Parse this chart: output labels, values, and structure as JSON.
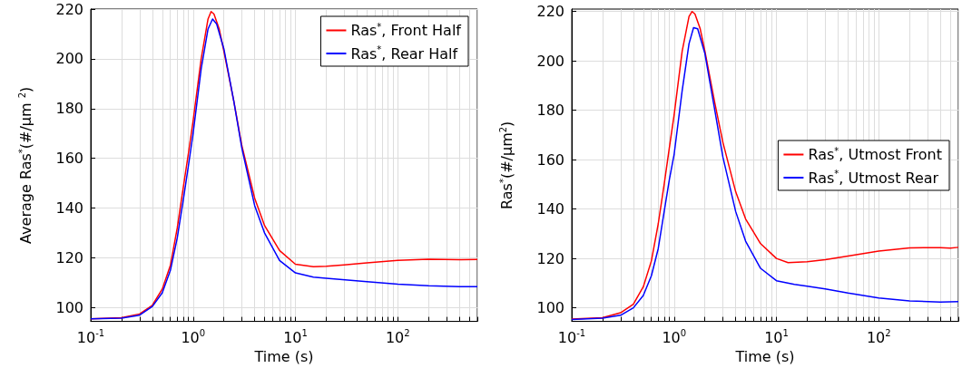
{
  "chart_data": [
    {
      "type": "line",
      "xlabel": "Time (s)",
      "ylabel": "Average Ras$^{*}$(#/µm $^{2}$)",
      "log": "x",
      "grid": true,
      "legend": "top right",
      "xlim": [
        0.1,
        600
      ],
      "ylim": [
        94.5,
        220
      ],
      "xticks": [
        {
          "value": 0.1,
          "label": "10$^{-1}$"
        },
        {
          "value": 0.2,
          "label": null
        },
        {
          "value": 0.3,
          "label": null
        },
        {
          "value": 0.4,
          "label": null
        },
        {
          "value": 0.5,
          "label": null
        },
        {
          "value": 0.6,
          "label": null
        },
        {
          "value": 0.7,
          "label": null
        },
        {
          "value": 0.8,
          "label": null
        },
        {
          "value": 0.9,
          "label": null
        },
        {
          "value": 1,
          "label": "10$^{0}$"
        },
        {
          "value": 2,
          "label": null
        },
        {
          "value": 3,
          "label": null
        },
        {
          "value": 4,
          "label": null
        },
        {
          "value": 5,
          "label": null
        },
        {
          "value": 6,
          "label": null
        },
        {
          "value": 7,
          "label": null
        },
        {
          "value": 8,
          "label": null
        },
        {
          "value": 9,
          "label": null
        },
        {
          "value": 10,
          "label": "10$^{1}$"
        },
        {
          "value": 20,
          "label": null
        },
        {
          "value": 30,
          "label": null
        },
        {
          "value": 40,
          "label": null
        },
        {
          "value": 50,
          "label": null
        },
        {
          "value": 60,
          "label": null
        },
        {
          "value": 70,
          "label": null
        },
        {
          "value": 80,
          "label": null
        },
        {
          "value": 90,
          "label": null
        },
        {
          "value": 100,
          "label": "10$^{2}$"
        },
        {
          "value": 200,
          "label": null
        },
        {
          "value": 300,
          "label": null
        },
        {
          "value": 400,
          "label": null
        },
        {
          "value": 500,
          "label": null
        },
        {
          "value": 600,
          "label": null
        }
      ],
      "yticks": [
        100,
        120,
        140,
        160,
        180,
        200,
        220
      ],
      "series": [
        {
          "name": "Ras$^{*}$, Front Half",
          "color": "#ff0000",
          "x": [
            0.1,
            0.2,
            0.3,
            0.4,
            0.5,
            0.6,
            0.7,
            0.8,
            0.9,
            1,
            1.2,
            1.4,
            1.5,
            1.6,
            1.8,
            2,
            2.5,
            3,
            4,
            5,
            7,
            10,
            15,
            20,
            30,
            50,
            100,
            200,
            400,
            600
          ],
          "values": [
            95.5,
            96,
            97.5,
            101,
            107.5,
            117,
            132,
            148,
            162,
            175,
            200,
            216,
            219,
            218,
            212,
            203,
            183,
            165,
            144,
            133,
            123,
            117.5,
            116.5,
            116.7,
            117.2,
            118,
            119,
            119.5,
            119.3,
            119.4
          ]
        },
        {
          "name": "Ras$^{*}$, Rear Half",
          "color": "#0000ff",
          "x": [
            0.1,
            0.2,
            0.3,
            0.4,
            0.5,
            0.6,
            0.7,
            0.8,
            0.9,
            1,
            1.2,
            1.4,
            1.55,
            1.7,
            2,
            2.5,
            3,
            4,
            5,
            7,
            10,
            15,
            20,
            50,
            100,
            200,
            400,
            600
          ],
          "values": [
            95.5,
            95.8,
            97,
            100.5,
            106,
            115,
            128,
            143,
            157,
            170,
            196,
            212,
            216,
            214,
            204,
            183,
            164,
            141,
            130,
            119,
            114,
            112.3,
            111.8,
            110.5,
            109.5,
            108.8,
            108.5,
            108.5
          ]
        }
      ]
    },
    {
      "type": "line",
      "xlabel": "Time (s)",
      "ylabel": "Ras$^{*}$(#/µm$^{2}$)",
      "log": "x",
      "grid": true,
      "legend": "right",
      "xlim": [
        0.1,
        600
      ],
      "ylim": [
        94.5,
        221
      ],
      "xticks": [
        {
          "value": 0.1,
          "label": "10$^{-1}$"
        },
        {
          "value": 0.2,
          "label": null
        },
        {
          "value": 0.3,
          "label": null
        },
        {
          "value": 0.4,
          "label": null
        },
        {
          "value": 0.5,
          "label": null
        },
        {
          "value": 0.6,
          "label": null
        },
        {
          "value": 0.7,
          "label": null
        },
        {
          "value": 0.8,
          "label": null
        },
        {
          "value": 0.9,
          "label": null
        },
        {
          "value": 1,
          "label": "10$^{0}$"
        },
        {
          "value": 2,
          "label": null
        },
        {
          "value": 3,
          "label": null
        },
        {
          "value": 4,
          "label": null
        },
        {
          "value": 5,
          "label": null
        },
        {
          "value": 6,
          "label": null
        },
        {
          "value": 7,
          "label": null
        },
        {
          "value": 8,
          "label": null
        },
        {
          "value": 9,
          "label": null
        },
        {
          "value": 10,
          "label": "10$^{1}$"
        },
        {
          "value": 20,
          "label": null
        },
        {
          "value": 30,
          "label": null
        },
        {
          "value": 40,
          "label": null
        },
        {
          "value": 50,
          "label": null
        },
        {
          "value": 60,
          "label": null
        },
        {
          "value": 70,
          "label": null
        },
        {
          "value": 80,
          "label": null
        },
        {
          "value": 90,
          "label": null
        },
        {
          "value": 100,
          "label": "10$^{2}$"
        },
        {
          "value": 200,
          "label": null
        },
        {
          "value": 300,
          "label": null
        },
        {
          "value": 400,
          "label": null
        },
        {
          "value": 500,
          "label": null
        },
        {
          "value": 600,
          "label": null
        }
      ],
      "yticks": [
        100,
        120,
        140,
        160,
        180,
        200,
        220
      ],
      "series": [
        {
          "name": "Ras$^{*}$, Utmost Front",
          "color": "#ff0000",
          "x": [
            0.1,
            0.2,
            0.3,
            0.4,
            0.5,
            0.6,
            0.7,
            0.8,
            0.9,
            1,
            1.2,
            1.4,
            1.5,
            1.6,
            1.8,
            2,
            2.5,
            3,
            4,
            5,
            7,
            10,
            13,
            20,
            30,
            50,
            100,
            200,
            400,
            500,
            600
          ],
          "values": [
            95.5,
            96,
            98,
            101.5,
            108.5,
            119,
            134,
            150,
            165,
            178,
            204,
            218,
            220,
            219,
            213,
            204,
            183,
            167,
            147,
            136,
            126,
            120,
            118.3,
            118.7,
            119.5,
            121,
            123,
            124.3,
            124.4,
            124.2,
            124.5
          ]
        },
        {
          "name": "Ras$^{*}$, Utmost Rear",
          "color": "#0000ff",
          "x": [
            0.1,
            0.2,
            0.3,
            0.4,
            0.5,
            0.6,
            0.7,
            0.8,
            0.9,
            1,
            1.2,
            1.4,
            1.55,
            1.7,
            2,
            2.5,
            3,
            4,
            5,
            7,
            10,
            15,
            20,
            30,
            50,
            100,
            200,
            400,
            600
          ],
          "values": [
            95.3,
            95.8,
            97,
            100,
            105,
            113,
            124,
            139,
            152,
            162,
            188,
            207,
            213.5,
            213,
            203,
            180,
            161,
            139,
            127,
            116,
            111,
            109.5,
            108.8,
            107.7,
            106,
            104,
            102.8,
            102.3,
            102.5
          ]
        }
      ]
    }
  ]
}
